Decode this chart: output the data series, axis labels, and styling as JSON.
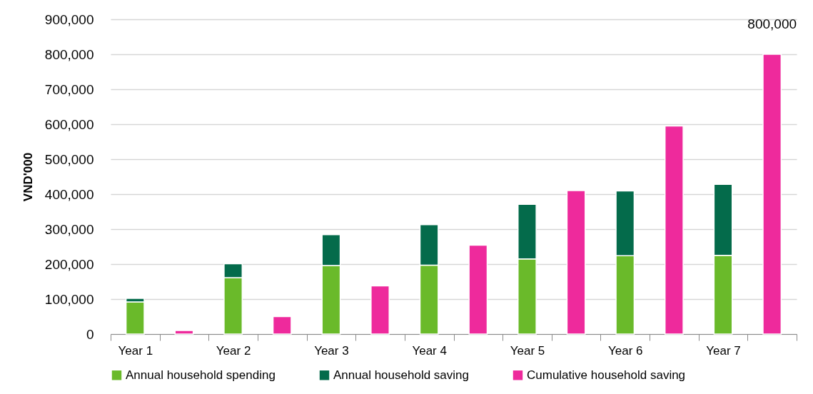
{
  "chart_data": {
    "type": "bar",
    "ylabel": "VND'000",
    "categories": [
      "Year 1",
      null,
      "Year 2",
      null,
      "Year 3",
      null,
      "Year 4",
      null,
      "Year 5",
      null,
      "Year 6",
      null,
      "Year 7",
      null
    ],
    "series": [
      {
        "name": "Annual household spending",
        "color": "#6aba2a",
        "values": [
          92000,
          null,
          161000,
          null,
          196000,
          null,
          197000,
          null,
          215000,
          null,
          224000,
          null,
          225000,
          null
        ]
      },
      {
        "name": "Annual household saving",
        "color": "#046b4b",
        "values": [
          10000,
          null,
          40000,
          null,
          88000,
          null,
          116000,
          null,
          156000,
          null,
          185000,
          null,
          203000,
          null
        ]
      },
      {
        "name": "Cumulative household saving",
        "color": "#ee2a9c",
        "values": [
          null,
          10000,
          null,
          50000,
          null,
          138000,
          null,
          254000,
          null,
          410000,
          null,
          595000,
          null,
          800000
        ],
        "value_labels": [
          null,
          null,
          null,
          null,
          null,
          null,
          null,
          null,
          null,
          null,
          null,
          null,
          null,
          "800,000"
        ]
      }
    ],
    "stacked": true,
    "ylim": [
      0,
      900000
    ],
    "yticks": [
      0,
      {
        "value": 100000,
        "label": "100,000"
      },
      {
        "value": 200000,
        "label": "200,000"
      },
      {
        "value": 300000,
        "label": "300,000"
      },
      {
        "value": 400000,
        "label": "400,000"
      },
      {
        "value": 500000,
        "label": "500,000"
      },
      {
        "value": 600000,
        "label": "600,000"
      },
      {
        "value": 700000,
        "label": "700,000"
      },
      {
        "value": 800000,
        "label": "800,000"
      },
      {
        "value": 900000,
        "label": "900,000"
      }
    ],
    "grid": "y",
    "legend": "bottom"
  }
}
